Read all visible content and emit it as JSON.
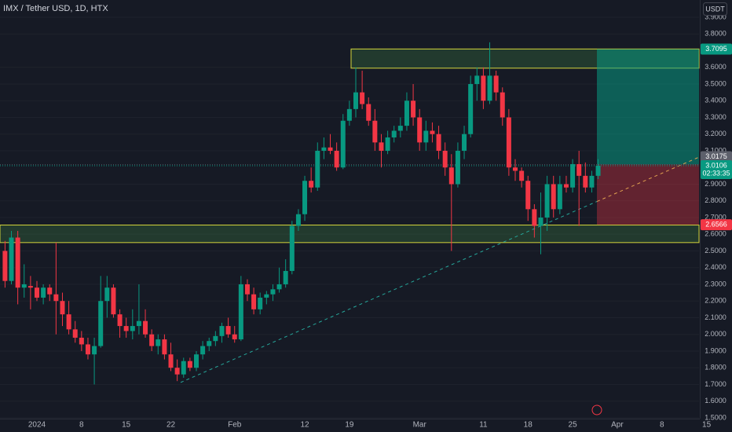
{
  "chart_data": {
    "type": "candlestick",
    "title": "IMX / Tether USD, 1D, HTX",
    "currency": "USDT",
    "categories": [
      null,
      null,
      null,
      null,
      null,
      "2024",
      null,
      null,
      null,
      null,
      null,
      null,
      "8",
      null,
      null,
      null,
      null,
      null,
      null,
      "15",
      null,
      null,
      null,
      null,
      null,
      null,
      "22",
      null,
      null,
      null,
      null,
      null,
      null,
      null,
      null,
      null,
      "Feb",
      null,
      null,
      null,
      null,
      null,
      null,
      null,
      null,
      null,
      null,
      "12",
      null,
      null,
      null,
      null,
      null,
      null,
      "19",
      null,
      null,
      null,
      null,
      null,
      null,
      null,
      null,
      null,
      null,
      "Mar",
      null,
      null,
      null,
      null,
      null,
      null,
      null,
      null,
      null,
      "11",
      null,
      null,
      null,
      null,
      null,
      null,
      "18",
      null,
      null,
      null,
      null,
      null,
      null,
      "25",
      null,
      null,
      null,
      null,
      null,
      null,
      "Apr",
      null,
      null,
      null,
      null,
      null,
      null,
      "8",
      null,
      null,
      null,
      null,
      null,
      null,
      "15"
    ],
    "open": [
      2.5,
      2.32,
      2.58,
      2.28,
      2.29,
      2.28,
      2.22,
      2.28,
      2.24,
      2.2,
      2.12,
      2.03,
      1.98,
      1.94,
      1.88,
      1.93,
      2.2,
      2.28,
      2.12,
      2.05,
      2.02,
      2.05,
      2.08,
      2.0,
      1.93,
      1.97,
      1.88,
      1.8,
      1.76,
      1.84,
      1.8,
      1.88,
      1.93,
      1.96,
      1.99,
      2.05,
      2.0,
      1.97,
      2.3,
      2.24,
      2.15,
      2.22,
      2.24,
      2.27,
      2.3,
      2.38,
      2.65,
      2.72,
      2.92,
      2.88,
      3.1,
      3.12,
      3.1,
      3.0,
      3.28,
      3.35,
      3.45,
      3.38,
      3.28,
      3.15,
      3.1,
      3.18,
      3.22,
      3.25,
      3.4,
      3.3,
      3.15,
      3.22,
      3.2,
      3.1,
      3.0,
      2.9,
      3.1,
      3.2,
      3.5,
      3.55,
      3.4,
      3.55,
      3.45,
      3.3,
      3.0,
      2.98,
      2.92,
      2.75,
      2.65,
      2.7,
      2.9,
      2.75,
      2.9,
      2.88,
      3.02,
      2.95,
      2.88,
      2.95,
      null,
      null,
      null,
      null,
      null,
      null,
      null,
      null,
      null,
      null,
      null,
      null,
      null,
      null,
      null,
      null,
      null
    ],
    "high": [
      2.56,
      2.62,
      2.62,
      2.42,
      2.35,
      2.32,
      2.3,
      2.3,
      2.55,
      2.25,
      2.2,
      2.08,
      2.02,
      1.98,
      1.98,
      2.35,
      2.35,
      2.3,
      2.15,
      2.1,
      2.15,
      2.3,
      2.15,
      2.03,
      2.0,
      2.0,
      1.95,
      1.85,
      1.86,
      1.86,
      1.9,
      1.96,
      1.98,
      2.02,
      2.07,
      2.1,
      2.05,
      2.35,
      2.33,
      2.28,
      2.25,
      2.26,
      2.3,
      2.4,
      2.45,
      2.68,
      2.75,
      2.95,
      3.0,
      3.15,
      3.18,
      3.2,
      3.15,
      3.32,
      3.4,
      3.6,
      3.58,
      3.42,
      3.35,
      3.2,
      3.22,
      3.25,
      3.3,
      3.45,
      3.5,
      3.35,
      3.28,
      3.27,
      3.25,
      3.15,
      3.08,
      3.15,
      3.25,
      3.55,
      3.6,
      3.6,
      3.75,
      3.58,
      3.48,
      3.35,
      3.05,
      3.0,
      2.95,
      2.78,
      2.85,
      2.95,
      2.95,
      2.95,
      2.95,
      3.05,
      3.1,
      3.03,
      2.98,
      3.05,
      null,
      null,
      null,
      null,
      null,
      null,
      null,
      null,
      null,
      null,
      null,
      null,
      null,
      null,
      null,
      null,
      null
    ],
    "low": [
      2.28,
      2.3,
      2.18,
      2.22,
      2.15,
      2.2,
      2.18,
      2.2,
      2.0,
      2.05,
      2.0,
      1.95,
      1.9,
      1.85,
      1.7,
      1.92,
      2.1,
      2.1,
      1.98,
      1.98,
      1.97,
      2.0,
      1.98,
      1.9,
      1.88,
      1.85,
      1.78,
      1.72,
      1.74,
      1.78,
      1.78,
      1.85,
      1.9,
      1.93,
      1.95,
      1.98,
      1.95,
      1.96,
      2.2,
      2.12,
      2.12,
      2.18,
      2.2,
      2.25,
      2.28,
      2.36,
      2.62,
      2.68,
      2.85,
      2.86,
      3.05,
      3.08,
      2.98,
      2.99,
      3.25,
      3.3,
      3.35,
      3.25,
      3.1,
      3.0,
      3.08,
      3.15,
      3.18,
      3.22,
      3.25,
      3.1,
      3.1,
      3.15,
      3.05,
      2.95,
      2.5,
      2.88,
      3.05,
      3.18,
      3.4,
      3.35,
      3.38,
      3.4,
      3.25,
      2.95,
      2.92,
      2.88,
      2.68,
      2.58,
      2.48,
      2.62,
      2.7,
      2.72,
      2.85,
      2.85,
      2.65,
      2.85,
      2.85,
      2.93,
      null,
      null,
      null,
      null,
      null,
      null,
      null,
      null,
      null,
      null,
      null,
      null,
      null,
      null,
      null,
      null,
      null
    ],
    "close": [
      2.32,
      2.58,
      2.28,
      2.3,
      2.28,
      2.22,
      2.28,
      2.24,
      2.2,
      2.12,
      2.03,
      1.98,
      1.94,
      1.88,
      1.93,
      2.2,
      2.28,
      2.12,
      2.05,
      2.02,
      2.05,
      2.08,
      2.0,
      1.93,
      1.97,
      1.88,
      1.8,
      1.76,
      1.84,
      1.8,
      1.88,
      1.93,
      1.96,
      1.99,
      2.05,
      2.0,
      1.97,
      2.3,
      2.24,
      2.15,
      2.22,
      2.24,
      2.27,
      2.3,
      2.38,
      2.65,
      2.72,
      2.92,
      2.88,
      3.1,
      3.12,
      3.1,
      3.0,
      3.28,
      3.35,
      3.45,
      3.38,
      3.28,
      3.15,
      3.1,
      3.18,
      3.22,
      3.25,
      3.4,
      3.3,
      3.15,
      3.22,
      3.2,
      3.1,
      3.0,
      2.9,
      3.1,
      3.2,
      3.5,
      3.55,
      3.4,
      3.55,
      3.45,
      3.3,
      3.0,
      2.98,
      2.92,
      2.75,
      2.65,
      2.7,
      2.9,
      2.75,
      2.9,
      2.88,
      3.02,
      2.95,
      2.88,
      2.95,
      3.0106,
      null,
      null,
      null,
      null,
      null,
      null,
      null,
      null,
      null,
      null,
      null,
      null,
      null,
      null,
      null,
      null,
      null
    ],
    "up_color": "#089981",
    "down_color": "#f23645",
    "ylim": [
      1.495,
      4.0035
    ],
    "yticks": [
      {
        "value": 3.9,
        "label": "3.9000"
      },
      {
        "value": 3.8,
        "label": "3.8000"
      },
      {
        "value": 3.6,
        "label": "3.6000"
      },
      {
        "value": 3.5,
        "label": "3.5000"
      },
      {
        "value": 3.4,
        "label": "3.4000"
      },
      {
        "value": 3.3,
        "label": "3.3000"
      },
      {
        "value": 3.2,
        "label": "3.2000"
      },
      {
        "value": 3.1,
        "label": "3.1000"
      },
      {
        "value": 2.9,
        "label": "2.9000"
      },
      {
        "value": 2.8,
        "label": "2.8000"
      },
      {
        "value": 2.7,
        "label": "2.7000"
      },
      {
        "value": 2.6,
        "label": "2.6000"
      },
      {
        "value": 2.5,
        "label": "2.5000"
      },
      {
        "value": 2.4,
        "label": "2.4000"
      },
      {
        "value": 2.3,
        "label": "2.3000"
      },
      {
        "value": 2.2,
        "label": "2.2000"
      },
      {
        "value": 2.1,
        "label": "2.1000"
      },
      {
        "value": 2.0,
        "label": "2.0000"
      },
      {
        "value": 1.9,
        "label": "1.9000"
      },
      {
        "value": 1.8,
        "label": "1.8000"
      },
      {
        "value": 1.7,
        "label": "1.7000"
      },
      {
        "value": 1.6,
        "label": "1.6000"
      },
      {
        "value": 1.5,
        "label": "1.5000"
      }
    ],
    "grid": true,
    "zones": [
      {
        "top": 3.71,
        "bottom": 3.595
      },
      {
        "top": 2.655,
        "bottom": 2.55
      }
    ],
    "trendline": {
      "start": 1.712,
      "end": 3.062
    },
    "position": {
      "target": 3.7095,
      "entry": 3.0175,
      "stop": 2.6566
    },
    "last_price": 3.0106,
    "countdown": "02:33:35"
  }
}
